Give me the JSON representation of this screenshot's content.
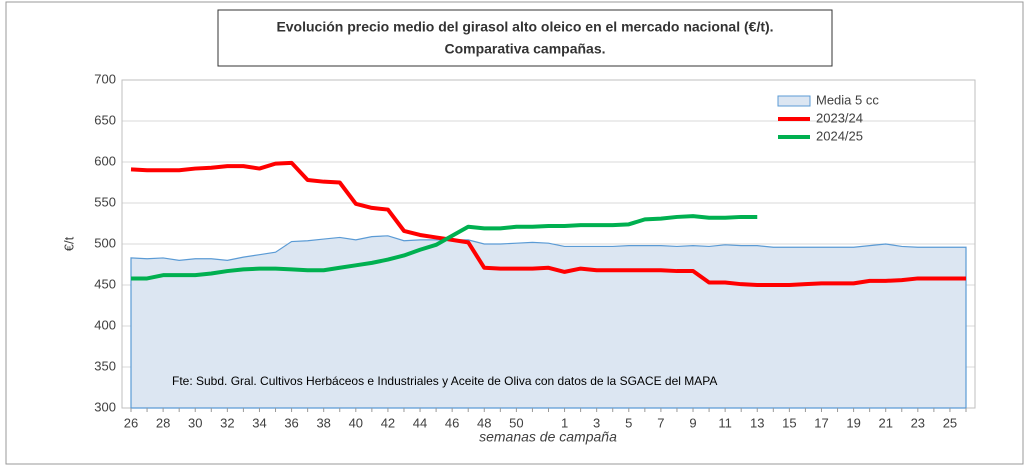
{
  "chart_data": {
    "type": "line",
    "title": [
      "Evolución precio medio del girasol alto oleico en el mercado nacional (€/t).",
      "Comparativa campañas."
    ],
    "x_label": "semanas de campaña",
    "y_label": "€/t",
    "annotation": "Fte: Subd. Gral. Cultivos Herbáceos e Industriales y Aceite de Oliva con datos de la SGACE del MAPA",
    "categories": [
      "26",
      null,
      "28",
      null,
      "30",
      null,
      "32",
      null,
      "34",
      null,
      "36",
      null,
      "38",
      null,
      "40",
      null,
      "42",
      null,
      "44",
      null,
      "46",
      null,
      "48",
      null,
      "50",
      null,
      null,
      "1",
      null,
      "3",
      null,
      "5",
      null,
      "7",
      null,
      "9",
      null,
      "11",
      null,
      "13",
      null,
      "15",
      null,
      "17",
      null,
      "19",
      null,
      "21",
      null,
      "23",
      null,
      "25",
      null
    ],
    "ylim": [
      300,
      700
    ],
    "yticks": [
      300,
      350,
      400,
      450,
      500,
      550,
      600,
      650,
      700
    ],
    "legend": "top-right",
    "series": [
      {
        "name": "Media 5 cc",
        "kind": "area",
        "color": "#5b9bd5",
        "fill": "#dce6f2",
        "values": [
          483,
          482,
          483,
          480,
          482,
          482,
          480,
          484,
          487,
          490,
          503,
          504,
          506,
          508,
          505,
          509,
          510,
          504,
          505,
          505,
          505,
          505,
          500,
          500,
          501,
          502,
          501,
          497,
          497,
          497,
          497,
          498,
          498,
          498,
          497,
          498,
          497,
          499,
          498,
          498,
          496,
          496,
          496,
          496,
          496,
          496,
          498,
          500,
          497,
          496,
          496,
          496,
          496
        ]
      },
      {
        "name": "2023/24",
        "kind": "line",
        "color": "#ff0000",
        "values": [
          591,
          590,
          590,
          590,
          592,
          593,
          595,
          595,
          592,
          598,
          599,
          578,
          576,
          575,
          549,
          544,
          542,
          516,
          511,
          508,
          505,
          502,
          471,
          470,
          470,
          470,
          471,
          466,
          470,
          468,
          468,
          468,
          468,
          468,
          467,
          467,
          453,
          453,
          451,
          450,
          450,
          450,
          451,
          452,
          452,
          452,
          455,
          455,
          456,
          458,
          458,
          458,
          458
        ]
      },
      {
        "name": "2024/25",
        "kind": "line",
        "color": "#00b050",
        "values": [
          458,
          458,
          462,
          462,
          462,
          464,
          467,
          469,
          470,
          470,
          469,
          468,
          468,
          471,
          474,
          477,
          481,
          486,
          493,
          499,
          510,
          521,
          519,
          519,
          521,
          521,
          522,
          522,
          523,
          523,
          523,
          524,
          530,
          531,
          533,
          534,
          532,
          532,
          533,
          533,
          null,
          null,
          null,
          null,
          null,
          null,
          null,
          null,
          null,
          null,
          null,
          null,
          null
        ]
      }
    ]
  }
}
